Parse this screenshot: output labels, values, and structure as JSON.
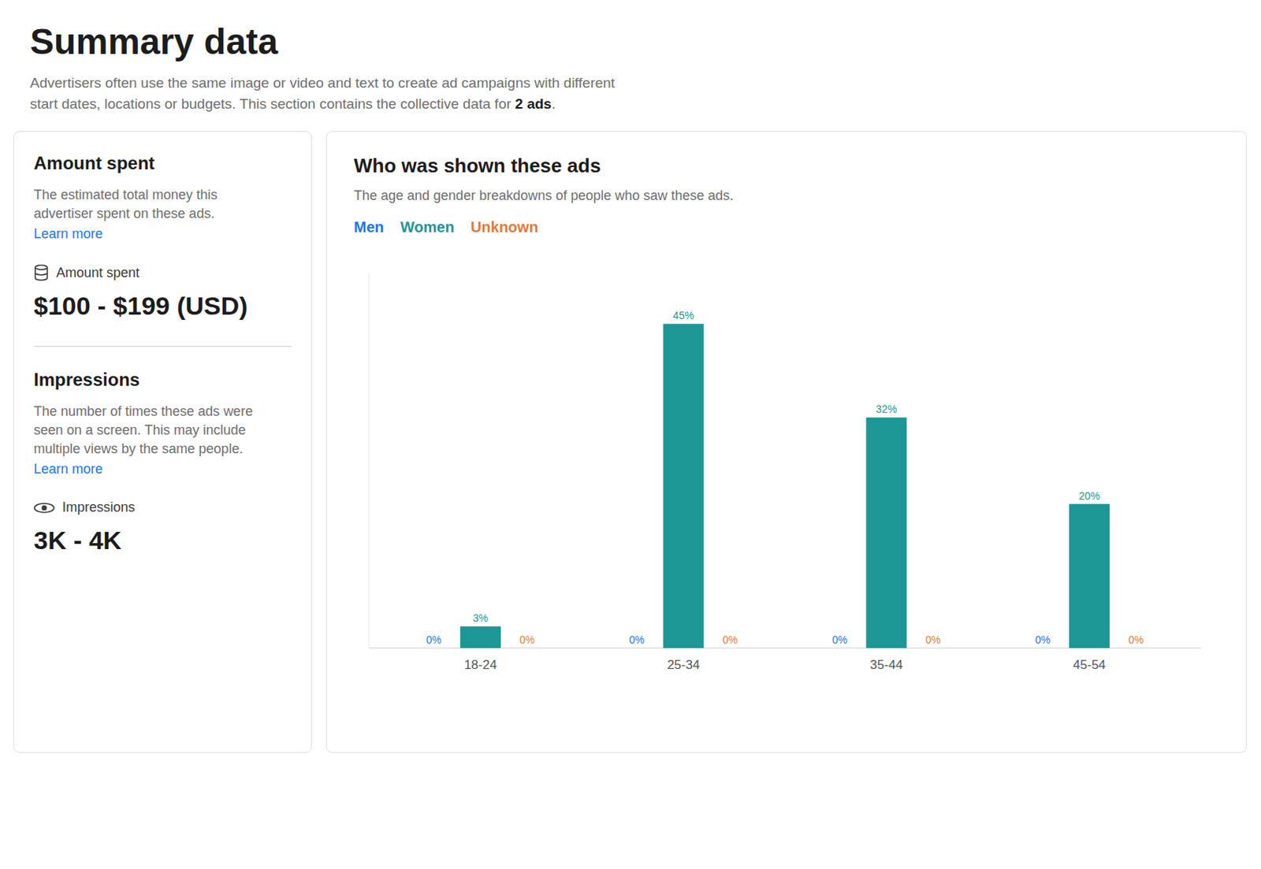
{
  "page": {
    "title": "Summary data",
    "line1": "Advertisers often use the same image or video and text to create ad campaigns with different",
    "line2_before": "start dates, locations or budgets. This section contains the collective data for ",
    "line2_bold": "2 ads",
    "line2_after": ".",
    "left_card": {
      "amount_title": "Amount spent",
      "amount_desc1": "The estimated total money this",
      "amount_desc2": "advertiser spent on these ads.",
      "amount_link": "Learn more",
      "amount_label": "Amount spent",
      "amount_value": "$100 - $199 (USD)",
      "impressions_title": "Impressions",
      "impressions_desc1": "The number of times these ads were",
      "impressions_desc2": "seen on a screen. This may include",
      "impressions_desc3": "multiple views by the same people.",
      "impressions_link": "Learn more",
      "impressions_label": "Impressions",
      "impressions_value": "3K - 4K"
    }
  },
  "chart_data": {
    "type": "bar",
    "title": "Who was shown these ads",
    "subtitle": "The age and gender breakdowns of people who saw these ads.",
    "categories": [
      "18-24",
      "25-34",
      "35-44",
      "45-54"
    ],
    "series": [
      {
        "name": "Men",
        "color": "#1877F2",
        "values": [
          0,
          0,
          0,
          0
        ],
        "value_labels": [
          "0%",
          "0%",
          "0%",
          "0%"
        ]
      },
      {
        "name": "Women",
        "color": "#1D9696",
        "values": [
          3,
          45,
          32,
          20
        ],
        "value_labels": [
          "3%",
          "45%",
          "32%",
          "20%"
        ]
      },
      {
        "name": "Unknown",
        "color": "#E07B39",
        "values": [
          0,
          0,
          0,
          0
        ],
        "value_labels": [
          "0%",
          "0%",
          "0%",
          "0%"
        ]
      }
    ],
    "ylim": [
      0,
      52
    ],
    "grid": false,
    "legend": "top-left",
    "data_labels": true,
    "tick_labels": "x"
  }
}
